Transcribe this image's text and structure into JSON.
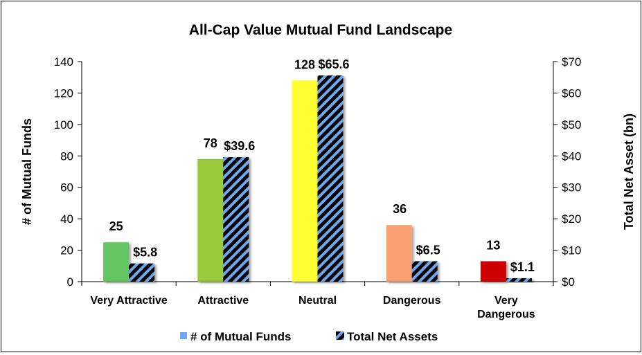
{
  "chart_data": {
    "type": "bar",
    "title": "All-Cap Value Mutual Fund Landscape",
    "categories": [
      "Very Attractive",
      "Attractive",
      "Neutral",
      "Dangerous",
      "Very Dangerous"
    ],
    "category_lines": [
      [
        "Very Attractive"
      ],
      [
        "Attractive"
      ],
      [
        "Neutral"
      ],
      [
        "Dangerous"
      ],
      [
        "Very",
        "Dangerous"
      ]
    ],
    "series": [
      {
        "name": "# of Mutual Funds",
        "axis": "left",
        "values": [
          25,
          78,
          128,
          36,
          13
        ],
        "labels": [
          "25",
          "78",
          "128",
          "36",
          "13"
        ],
        "colors": [
          "#63c663",
          "#99c93a",
          "#ffff33",
          "#f9a070",
          "#cc0000"
        ]
      },
      {
        "name": "Total Net Assets",
        "axis": "right",
        "values": [
          5.8,
          39.6,
          65.6,
          6.5,
          1.1
        ],
        "labels": [
          "$5.8",
          "$39.6",
          "$65.6",
          "$6.5",
          "$1.1"
        ],
        "pattern": "black with blue diagonal stripes"
      }
    ],
    "ylabel": "# of Mutual Funds",
    "y2label": "Total Net Asset (bn)",
    "ylim": [
      0,
      140
    ],
    "y2lim": [
      0,
      70
    ],
    "yticks": [
      "0",
      "20",
      "40",
      "60",
      "80",
      "100",
      "120",
      "140"
    ],
    "y2ticks": [
      "$0",
      "$10",
      "$20",
      "$30",
      "$40",
      "$50",
      "$60",
      "$70"
    ],
    "legend_position": "bottom",
    "grid": false,
    "colors": {
      "stripe_dark": "#000000",
      "stripe_light": "#6fa8f0",
      "legend_funds": "#6fa8f0"
    }
  }
}
